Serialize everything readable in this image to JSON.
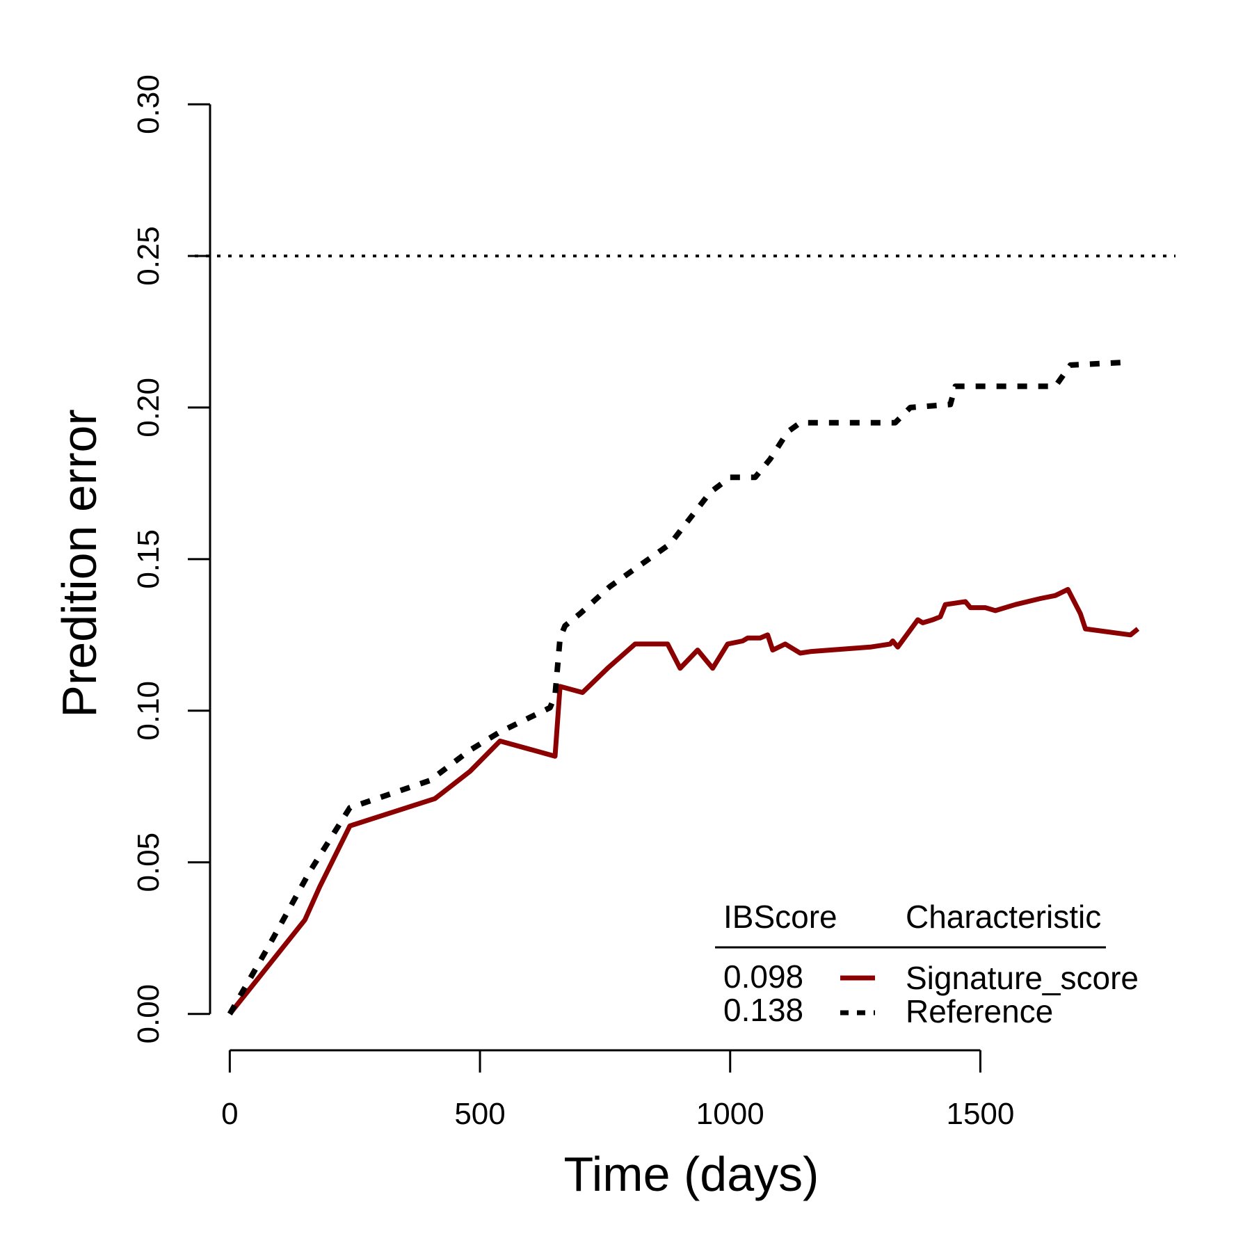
{
  "chart_data": {
    "type": "line",
    "xlabel": "Time (days)",
    "ylabel": "Predition error",
    "xlim": [
      -70,
      1890
    ],
    "ylim": [
      -0.012,
      0.3
    ],
    "x_ticks": [
      0,
      500,
      1000,
      1500
    ],
    "x_tick_labels": [
      "0",
      "500",
      "1000",
      "1500"
    ],
    "y_ticks": [
      0.0,
      0.05,
      0.1,
      0.15,
      0.2,
      0.25,
      0.3
    ],
    "y_tick_labels": [
      "0.00",
      "0.05",
      "0.10",
      "0.15",
      "0.20",
      "0.25",
      "0.30"
    ],
    "grid": false,
    "hline": {
      "y": 0.25,
      "style": "dotted",
      "color": "#000000"
    },
    "legend": {
      "position": "bottom-right",
      "header_score": "IBScore",
      "header_name": "Characteristic"
    },
    "series": [
      {
        "name": "Signature_score",
        "ibscore": "0.098",
        "color": "#8b0000",
        "style": "solid",
        "x": [
          0,
          150,
          180,
          240,
          410,
          480,
          540,
          650,
          660,
          705,
          755,
          810,
          875,
          900,
          935,
          965,
          995,
          1025,
          1035,
          1060,
          1075,
          1085,
          1110,
          1140,
          1160,
          1280,
          1320,
          1325,
          1335,
          1375,
          1385,
          1405,
          1420,
          1430,
          1470,
          1480,
          1510,
          1530,
          1570,
          1620,
          1650,
          1675,
          1700,
          1710,
          1800,
          1815
        ],
        "y": [
          0.0,
          0.031,
          0.042,
          0.062,
          0.071,
          0.08,
          0.09,
          0.085,
          0.108,
          0.106,
          0.114,
          0.122,
          0.122,
          0.114,
          0.12,
          0.114,
          0.122,
          0.123,
          0.124,
          0.124,
          0.125,
          0.12,
          0.122,
          0.119,
          0.1195,
          0.121,
          0.122,
          0.123,
          0.121,
          0.13,
          0.129,
          0.13,
          0.131,
          0.135,
          0.136,
          0.134,
          0.134,
          0.133,
          0.135,
          0.137,
          0.138,
          0.14,
          0.132,
          0.127,
          0.125,
          0.127
        ]
      },
      {
        "name": "Reference",
        "ibscore": "0.138",
        "color": "#000000",
        "style": "dashed",
        "x": [
          0,
          80,
          160,
          240,
          400,
          480,
          540,
          640,
          650,
          660,
          670,
          700,
          760,
          880,
          960,
          1000,
          1050,
          1080,
          1115,
          1140,
          1330,
          1360,
          1440,
          1450,
          1650,
          1680,
          1800
        ],
        "y": [
          0.0,
          0.023,
          0.047,
          0.068,
          0.077,
          0.087,
          0.093,
          0.101,
          0.105,
          0.124,
          0.128,
          0.132,
          0.141,
          0.155,
          0.172,
          0.177,
          0.177,
          0.183,
          0.192,
          0.195,
          0.195,
          0.2,
          0.201,
          0.207,
          0.207,
          0.214,
          0.215
        ]
      }
    ]
  }
}
